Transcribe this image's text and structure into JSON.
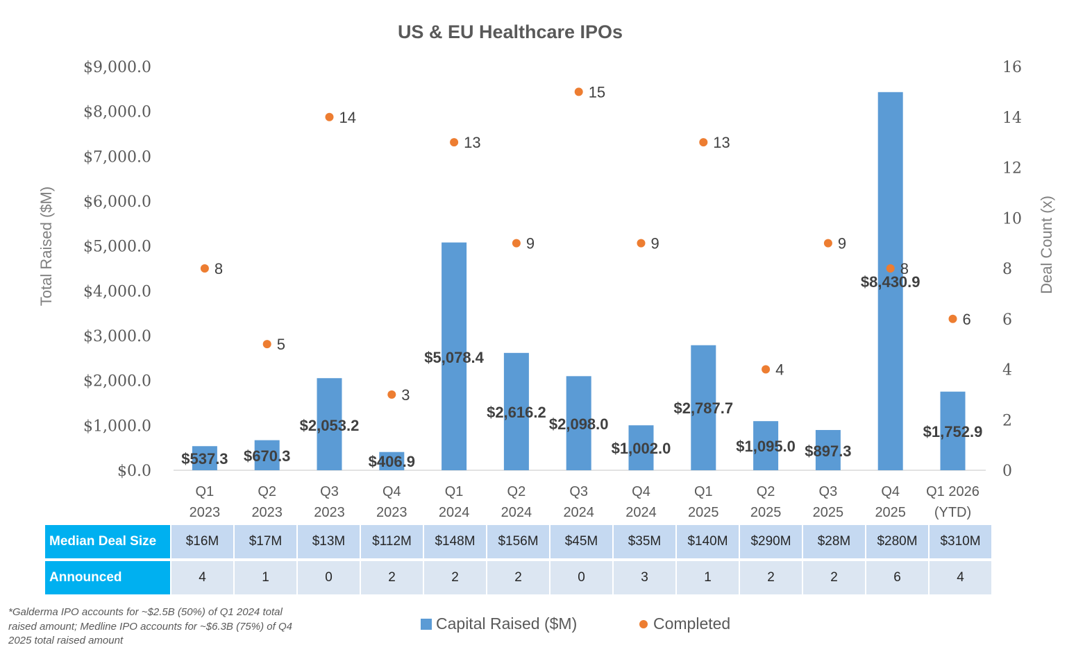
{
  "chart_data": {
    "type": "bar",
    "title": "US & EU Healthcare IPOs",
    "categories": [
      "Q1 2023",
      "Q2 2023",
      "Q3 2023",
      "Q4 2023",
      "Q1 2024",
      "Q2 2024",
      "Q3 2024",
      "Q4 2024",
      "Q1 2025",
      "Q2 2025",
      "Q3 2025",
      "Q4 2025",
      "Q1 2026 (YTD)"
    ],
    "category_lines": [
      [
        "Q1",
        "2023"
      ],
      [
        "Q2",
        "2023"
      ],
      [
        "Q3",
        "2023"
      ],
      [
        "Q4",
        "2023"
      ],
      [
        "Q1",
        "2024"
      ],
      [
        "Q2",
        "2024"
      ],
      [
        "Q3",
        "2024"
      ],
      [
        "Q4",
        "2024"
      ],
      [
        "Q1",
        "2025"
      ],
      [
        "Q2",
        "2025"
      ],
      [
        "Q3",
        "2025"
      ],
      [
        "Q4",
        "2025"
      ],
      [
        "Q1 2026",
        "(YTD)"
      ]
    ],
    "ylabel": "Total Raised ($M)",
    "y2label": "Deal Count (x)",
    "ylim": [
      0,
      9000
    ],
    "y2lim": [
      0,
      16
    ],
    "yticks": [
      "$0.0",
      "$1,000.0",
      "$2,000.0",
      "$3,000.0",
      "$4,000.0",
      "$5,000.0",
      "$6,000.0",
      "$7,000.0",
      "$8,000.0",
      "$9,000.0"
    ],
    "y2ticks": [
      "0",
      "2",
      "4",
      "6",
      "8",
      "10",
      "12",
      "14",
      "16"
    ],
    "grid": false,
    "legend_position": "bottom",
    "series": [
      {
        "name": "Capital Raised ($M)",
        "type": "bar",
        "axis": "left",
        "color": "#5b9bd5",
        "values": [
          537.3,
          670.3,
          2053.2,
          406.9,
          5078.4,
          2616.2,
          2098.0,
          1002.0,
          2787.7,
          1095.0,
          897.3,
          8430.9,
          1752.9
        ],
        "labels": [
          "$537.3",
          "$670.3",
          "$2,053.2",
          "$406.9",
          "$5,078.4",
          "$2,616.2",
          "$2,098.0",
          "$1,002.0",
          "$2,787.7",
          "$1,095.0",
          "$897.3",
          "$8,430.9",
          "$1,752.9"
        ]
      },
      {
        "name": "Completed",
        "type": "scatter",
        "axis": "right",
        "color": "#ed7d31",
        "values": [
          8,
          5,
          14,
          3,
          13,
          9,
          15,
          9,
          13,
          4,
          9,
          8,
          6
        ],
        "labels": [
          "8",
          "5",
          "14",
          "3",
          "13",
          "9",
          "15",
          "9",
          "13",
          "4",
          "9",
          "8",
          "6"
        ]
      }
    ]
  },
  "table": {
    "rows": [
      {
        "header": "Median Deal Size",
        "values": [
          "$16M",
          "$17M",
          "$13M",
          "$112M",
          "$148M",
          "$156M",
          "$45M",
          "$35M",
          "$140M",
          "$290M",
          "$28M",
          "$280M",
          "$310M"
        ]
      },
      {
        "header": "Announced",
        "values": [
          "4",
          "1",
          "0",
          "2",
          "2",
          "2",
          "0",
          "3",
          "1",
          "2",
          "2",
          "6",
          "4"
        ]
      }
    ],
    "header_color": "#00b0f0"
  },
  "footnote": "*Galderma IPO accounts for ~$2.5B (50%) of Q1 2024 total raised amount; Medline IPO accounts for ~$6.3B (75%) of Q4 2025 total raised amount"
}
